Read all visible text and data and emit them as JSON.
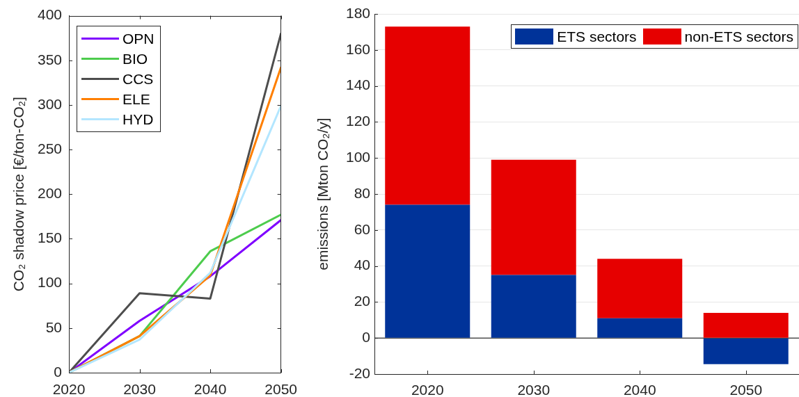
{
  "chart_data": [
    {
      "type": "line",
      "x": [
        2020,
        2030,
        2040,
        2050
      ],
      "xlim": [
        2020,
        2050
      ],
      "xticks": [
        2020,
        2030,
        2040,
        2050
      ],
      "ylim": [
        0,
        400
      ],
      "yticks": [
        0,
        50,
        100,
        150,
        200,
        250,
        300,
        350,
        400
      ],
      "ylabel": "CO₂ shadow price [€/ton-CO₂]",
      "grid": false,
      "legend": "top left",
      "marker": "none",
      "line_style": "solid",
      "series": [
        {
          "name": "OPN",
          "color": "#7f00ff",
          "values": [
            0,
            58,
            108,
            171
          ]
        },
        {
          "name": "BIO",
          "color": "#4dcc4d",
          "values": [
            0,
            41,
            136,
            177
          ]
        },
        {
          "name": "CCS",
          "color": "#4d4d4d",
          "values": [
            0,
            89,
            83,
            380
          ]
        },
        {
          "name": "ELE",
          "color": "#ff7f00",
          "values": [
            0,
            41,
            109,
            342
          ]
        },
        {
          "name": "HYD",
          "color": "#b3e6ff",
          "values": [
            0,
            37,
            112,
            299
          ]
        }
      ]
    },
    {
      "type": "bar",
      "stacked": true,
      "categories": [
        "2020",
        "2030",
        "2040",
        "2050"
      ],
      "ylim": [
        -20,
        180
      ],
      "yticks": [
        -20,
        0,
        20,
        40,
        60,
        80,
        100,
        120,
        140,
        160,
        180
      ],
      "ylabel": "emissions [Mton CO₂/y]",
      "grid": "y",
      "legend": "top right",
      "ref_lines": [
        {
          "axis": "y",
          "value": 0,
          "color": "#000000"
        }
      ],
      "series": [
        {
          "name": "ETS sectors",
          "color": "#003399",
          "values": [
            74,
            35,
            11,
            -14.5
          ]
        },
        {
          "name": "non-ETS sectors",
          "color": "#e60000",
          "values": [
            99,
            64,
            33,
            14
          ]
        }
      ]
    }
  ]
}
